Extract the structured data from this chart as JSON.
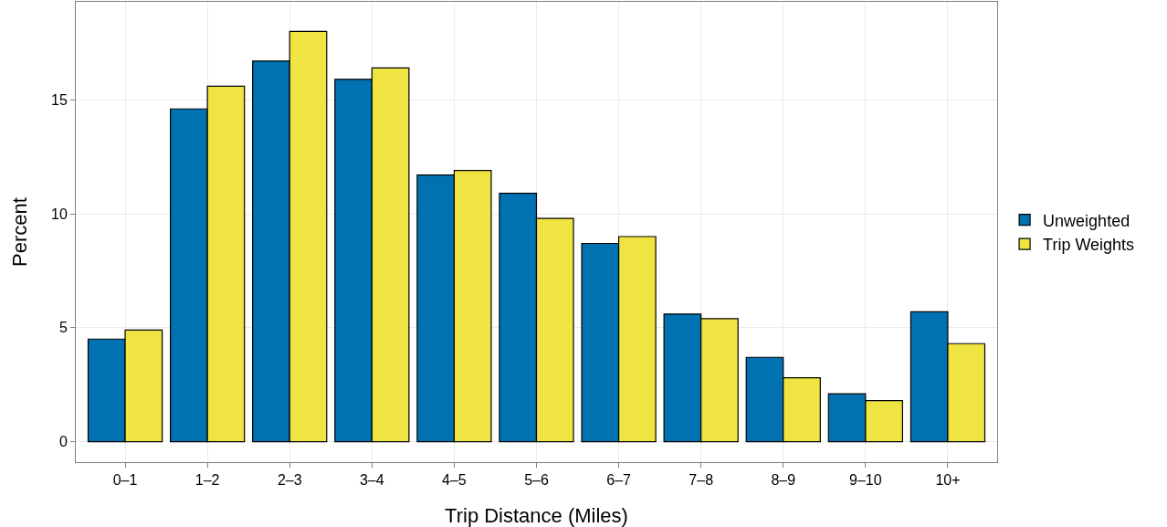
{
  "chart_data": {
    "type": "bar",
    "xlabel": "Trip Distance (Miles)",
    "ylabel": "Percent",
    "categories": [
      "0–1",
      "1–2",
      "2–3",
      "3–4",
      "4–5",
      "5–6",
      "6–7",
      "7–8",
      "8–9",
      "9–10",
      "10+"
    ],
    "series": [
      {
        "name": "Unweighted",
        "color": "#0072b2",
        "values": [
          4.5,
          14.6,
          16.7,
          15.9,
          11.7,
          10.9,
          8.7,
          5.6,
          3.7,
          2.1,
          5.7
        ]
      },
      {
        "name": "Trip Weights",
        "color": "#f0e442",
        "values": [
          4.9,
          15.6,
          18.0,
          16.4,
          11.9,
          9.8,
          9.0,
          5.4,
          2.8,
          1.8,
          4.3
        ]
      }
    ],
    "ylim": [
      -0.9,
      19.3
    ],
    "yticks": [
      0,
      5,
      10,
      15
    ],
    "grid": true,
    "legend": "right"
  }
}
